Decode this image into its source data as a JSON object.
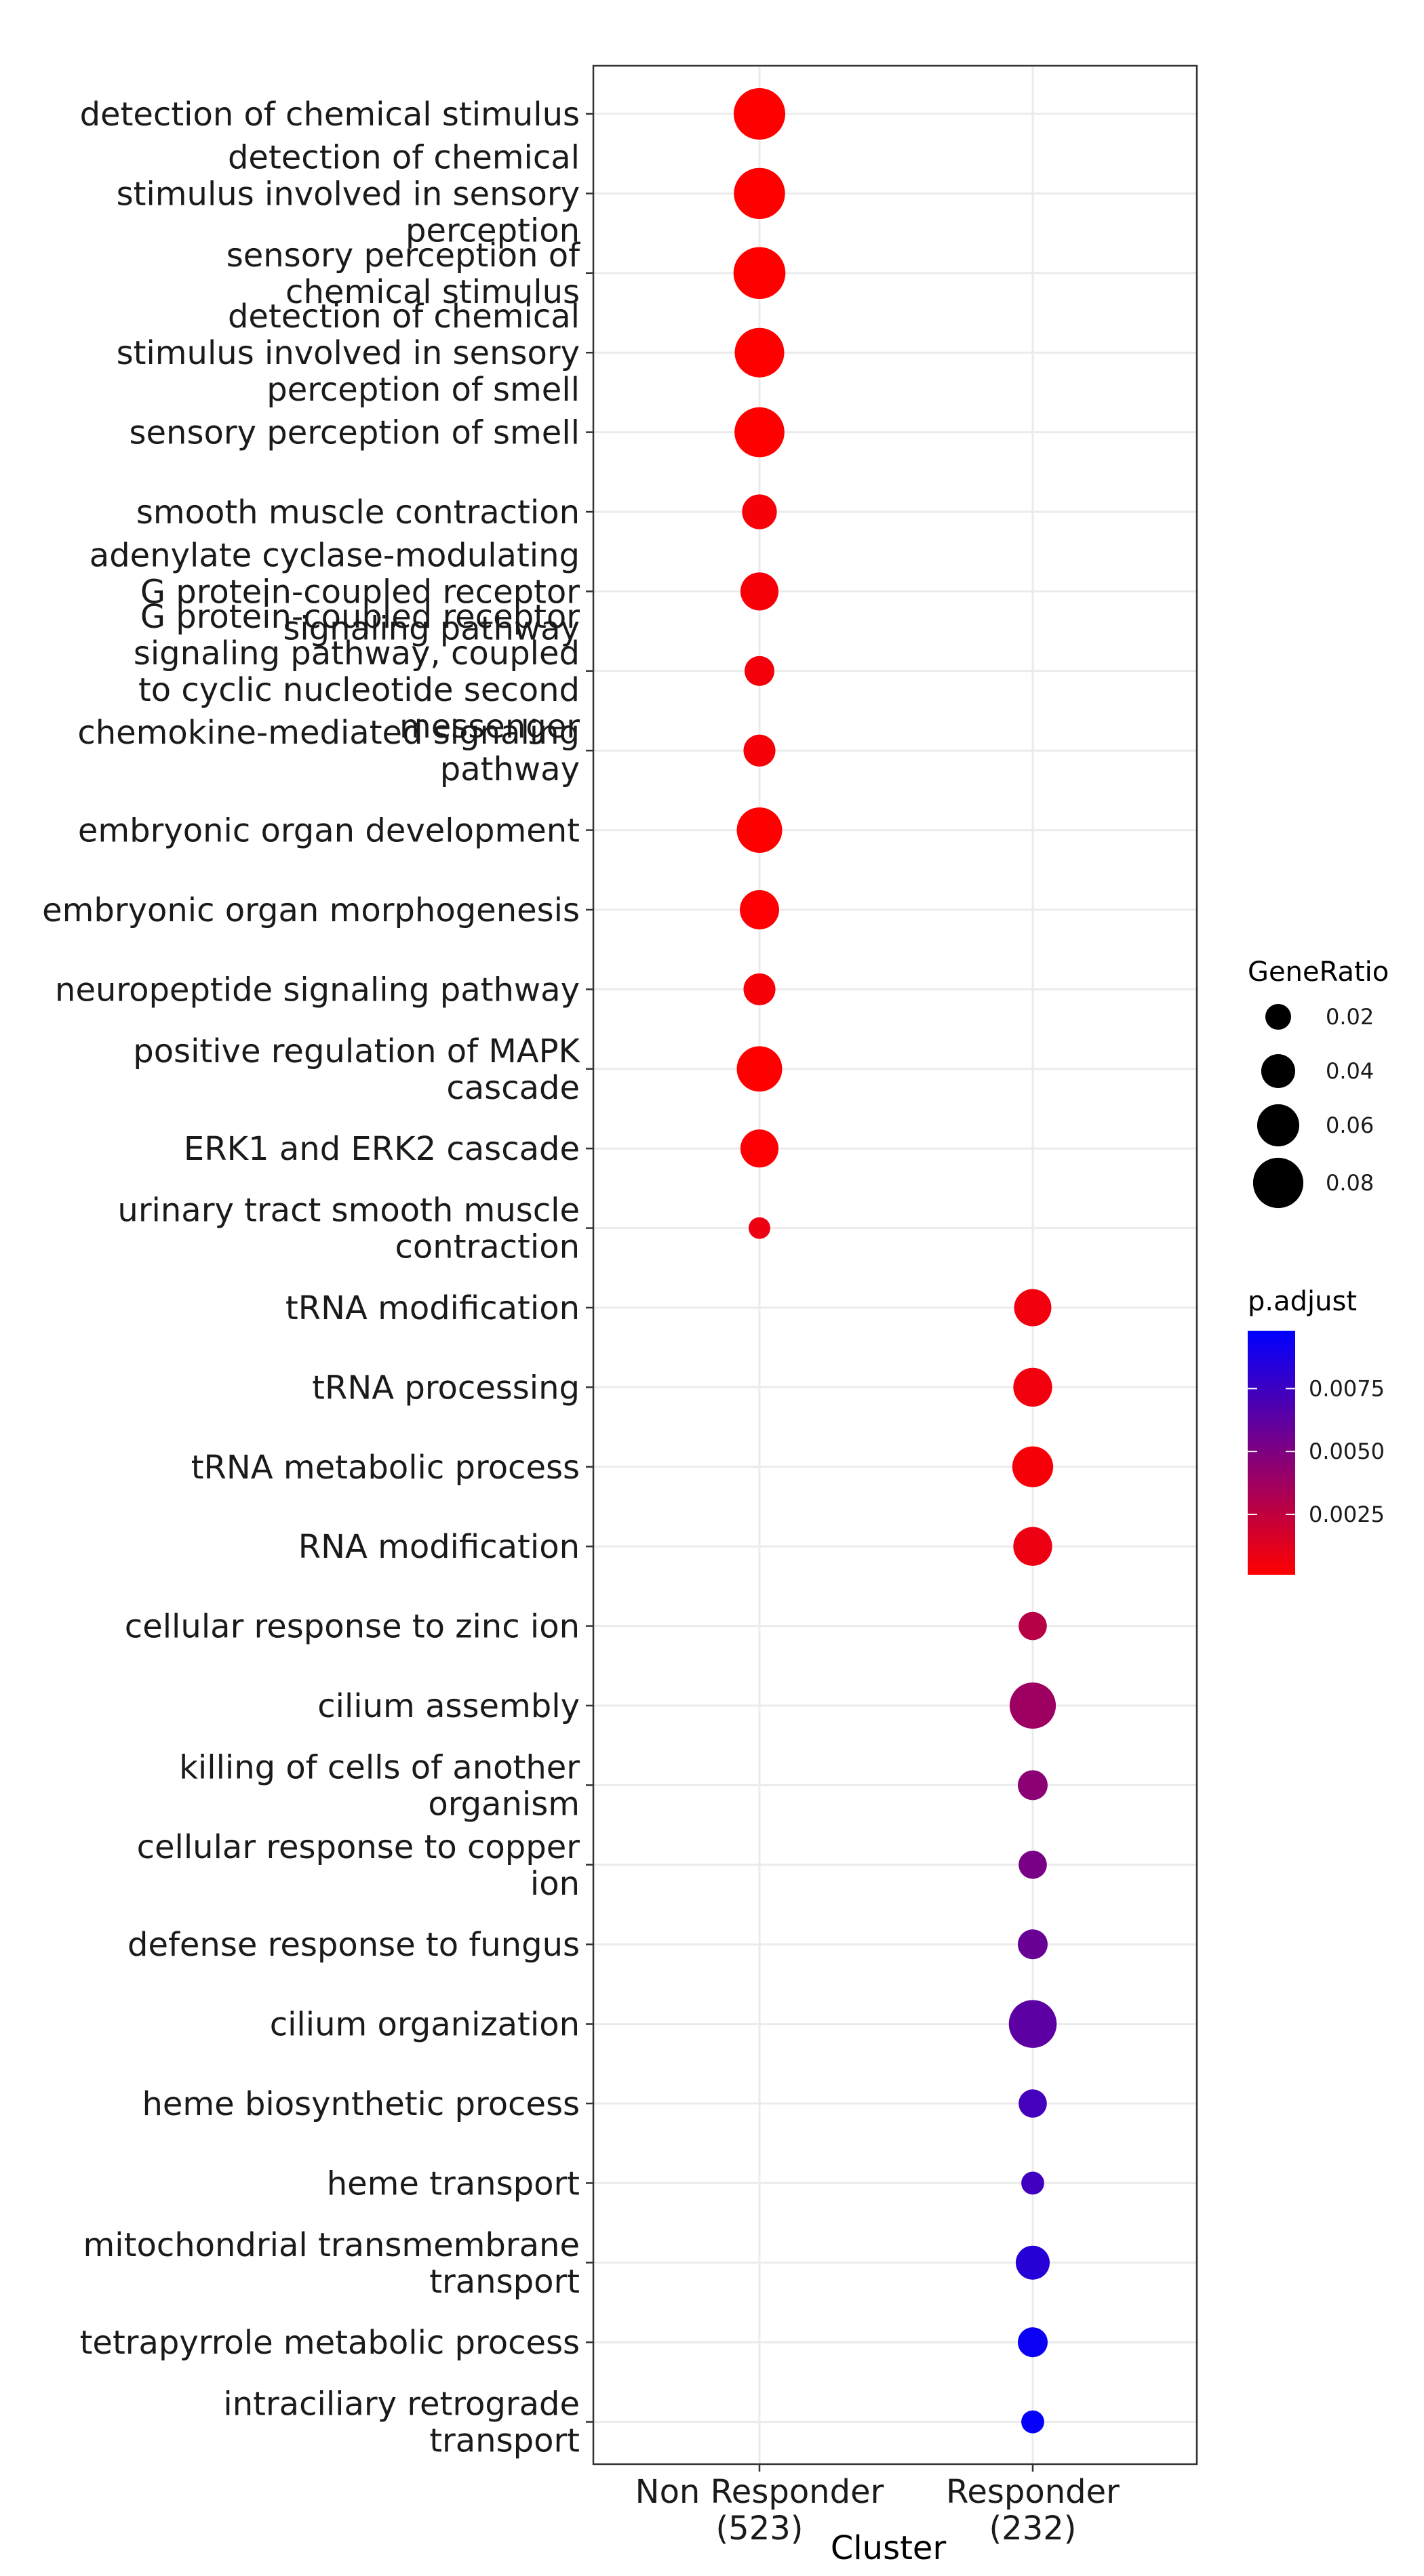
{
  "chart_data": {
    "type": "dotplot",
    "xlabel": "Cluster",
    "ylabel": "",
    "grid": true,
    "legend_position": "right",
    "categories": [
      {
        "label": [
          "Non Responder",
          "(523)"
        ]
      },
      {
        "label": [
          "Responder",
          "(232)"
        ]
      }
    ],
    "terms": [
      {
        "label": [
          "detection of chemical stimulus"
        ],
        "cluster": 0,
        "gene_ratio": 0.083,
        "p_adjust": 0.0001
      },
      {
        "label": [
          "detection of chemical",
          "stimulus involved in sensory",
          "perception"
        ],
        "cluster": 0,
        "gene_ratio": 0.082,
        "p_adjust": 0.0001
      },
      {
        "label": [
          "sensory perception of",
          "chemical stimulus"
        ],
        "cluster": 0,
        "gene_ratio": 0.084,
        "p_adjust": 0.0001
      },
      {
        "label": [
          "detection of chemical",
          "stimulus involved in sensory",
          "perception of smell"
        ],
        "cluster": 0,
        "gene_ratio": 0.078,
        "p_adjust": 0.0001
      },
      {
        "label": [
          "sensory perception of smell"
        ],
        "cluster": 0,
        "gene_ratio": 0.079,
        "p_adjust": 0.0001
      },
      {
        "label": [
          "smooth muscle contraction"
        ],
        "cluster": 0,
        "gene_ratio": 0.042,
        "p_adjust": 0.0004
      },
      {
        "label": [
          "adenylate cyclase-modulating",
          "G protein-coupled receptor",
          "signaling pathway"
        ],
        "cluster": 0,
        "gene_ratio": 0.05,
        "p_adjust": 0.0004
      },
      {
        "label": [
          "G protein-coupled receptor",
          "signaling pathway, coupled",
          "to cyclic nucleotide second",
          "messenger"
        ],
        "cluster": 0,
        "gene_ratio": 0.03,
        "p_adjust": 0.0005
      },
      {
        "label": [
          "chemokine-mediated signaling",
          "pathway"
        ],
        "cluster": 0,
        "gene_ratio": 0.035,
        "p_adjust": 0.0004
      },
      {
        "label": [
          "embryonic organ development"
        ],
        "cluster": 0,
        "gene_ratio": 0.068,
        "p_adjust": 0.0001
      },
      {
        "label": [
          "embryonic organ morphogenesis"
        ],
        "cluster": 0,
        "gene_ratio": 0.053,
        "p_adjust": 0.0002
      },
      {
        "label": [
          "neuropeptide signaling pathway"
        ],
        "cluster": 0,
        "gene_ratio": 0.035,
        "p_adjust": 0.0004
      },
      {
        "label": [
          "positive regulation of MAPK",
          "cascade"
        ],
        "cluster": 0,
        "gene_ratio": 0.068,
        "p_adjust": 0.0001
      },
      {
        "label": [
          "ERK1 and ERK2 cascade"
        ],
        "cluster": 0,
        "gene_ratio": 0.05,
        "p_adjust": 0.0002
      },
      {
        "label": [
          "urinary tract smooth muscle",
          "contraction"
        ],
        "cluster": 0,
        "gene_ratio": 0.01,
        "p_adjust": 0.0008
      },
      {
        "label": [
          "tRNA modification"
        ],
        "cluster": 1,
        "gene_ratio": 0.048,
        "p_adjust": 0.0006
      },
      {
        "label": [
          "tRNA processing"
        ],
        "cluster": 1,
        "gene_ratio": 0.052,
        "p_adjust": 0.0006
      },
      {
        "label": [
          "tRNA metabolic process"
        ],
        "cluster": 1,
        "gene_ratio": 0.057,
        "p_adjust": 0.0004
      },
      {
        "label": [
          "RNA modification"
        ],
        "cluster": 1,
        "gene_ratio": 0.052,
        "p_adjust": 0.0008
      },
      {
        "label": [
          "cellular response to zinc ion"
        ],
        "cluster": 1,
        "gene_ratio": 0.026,
        "p_adjust": 0.0028
      },
      {
        "label": [
          "cilium assembly"
        ],
        "cluster": 1,
        "gene_ratio": 0.07,
        "p_adjust": 0.0038
      },
      {
        "label": [
          "killing of cells of another",
          "organism"
        ],
        "cluster": 1,
        "gene_ratio": 0.03,
        "p_adjust": 0.0045
      },
      {
        "label": [
          "cellular response to copper",
          "ion"
        ],
        "cluster": 1,
        "gene_ratio": 0.026,
        "p_adjust": 0.0052
      },
      {
        "label": [
          "defense response to fungus"
        ],
        "cluster": 1,
        "gene_ratio": 0.03,
        "p_adjust": 0.0058
      },
      {
        "label": [
          "cilium organization"
        ],
        "cluster": 1,
        "gene_ratio": 0.074,
        "p_adjust": 0.0063
      },
      {
        "label": [
          "heme biosynthetic process"
        ],
        "cluster": 1,
        "gene_ratio": 0.026,
        "p_adjust": 0.0072
      },
      {
        "label": [
          "heme transport"
        ],
        "cluster": 1,
        "gene_ratio": 0.013,
        "p_adjust": 0.0074
      },
      {
        "label": [
          "mitochondrial transmembrane",
          "transport"
        ],
        "cluster": 1,
        "gene_ratio": 0.04,
        "p_adjust": 0.0083
      },
      {
        "label": [
          "tetrapyrrole metabolic process"
        ],
        "cluster": 1,
        "gene_ratio": 0.03,
        "p_adjust": 0.0094
      },
      {
        "label": [
          "intraciliary retrograde",
          "transport"
        ],
        "cluster": 1,
        "gene_ratio": 0.013,
        "p_adjust": 0.0096
      }
    ],
    "size_legend": {
      "title": "GeneRatio",
      "breaks": [
        0.02,
        0.04,
        0.06,
        0.08
      ],
      "labels": [
        "0.02",
        "0.04",
        "0.06",
        "0.08"
      ]
    },
    "color_legend": {
      "title": "p.adjust",
      "range": [
        0.0001,
        0.0098
      ],
      "low_color": "#ff0000",
      "high_color": "#0000ff",
      "breaks": [
        0.0025,
        0.005,
        0.0075
      ],
      "labels": [
        "0.0025",
        "0.0050",
        "0.0075"
      ]
    }
  }
}
